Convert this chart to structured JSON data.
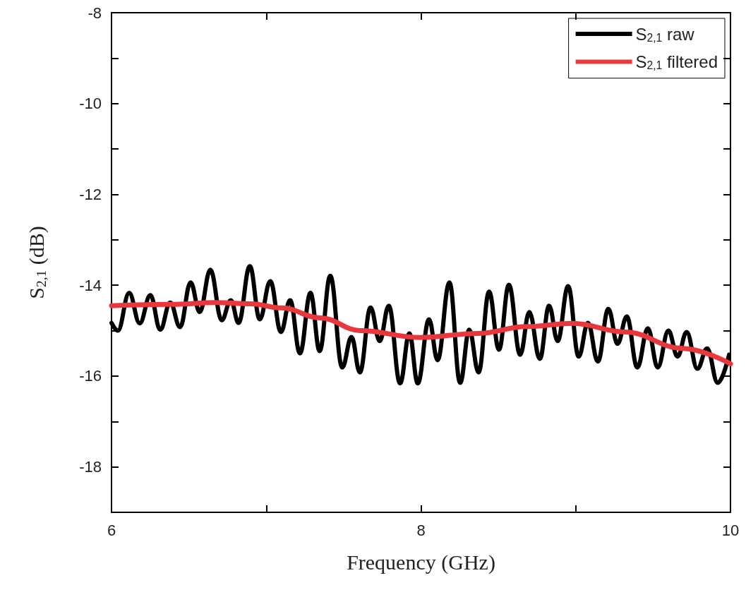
{
  "chart_data": {
    "type": "line",
    "xlabel": "Frequency (GHz)",
    "ylabel": "S$_{2,1}$ (dB)",
    "xlim": [
      6,
      10
    ],
    "ylim": [
      -19,
      -8
    ],
    "xticks": [
      6,
      {
        "value": 7,
        "label": null
      },
      8,
      {
        "value": 9,
        "label": null
      },
      10
    ],
    "yticks": [
      {
        "value": -19,
        "label": null
      },
      -18,
      {
        "value": -17,
        "label": null
      },
      -16,
      {
        "value": -15,
        "label": null
      },
      -14,
      {
        "value": -13,
        "label": null
      },
      -12,
      {
        "value": -11,
        "label": null
      },
      -10,
      {
        "value": -9,
        "label": null
      },
      -8
    ],
    "legend": "top right",
    "grid": false,
    "marker": "none",
    "line_style": "solid",
    "series": [
      {
        "name": "S$_{2,1}$ raw",
        "color": "#000000",
        "x": [
          6.0,
          6.041,
          6.114,
          6.182,
          6.251,
          6.315,
          6.379,
          6.443,
          6.511,
          6.57,
          6.639,
          6.712,
          6.771,
          6.821,
          6.894,
          6.958,
          7.026,
          7.095,
          7.154,
          7.218,
          7.286,
          7.345,
          7.414,
          7.491,
          7.551,
          7.605,
          7.674,
          7.733,
          7.792,
          7.865,
          7.925,
          7.979,
          8.052,
          8.107,
          8.184,
          8.253,
          8.312,
          8.372,
          8.44,
          8.504,
          8.568,
          8.641,
          8.7,
          8.768,
          8.828,
          8.883,
          8.951,
          9.019,
          9.079,
          9.143,
          9.211,
          9.27,
          9.33,
          9.398,
          9.466,
          9.53,
          9.599,
          9.658,
          9.717,
          9.786,
          9.849,
          9.918,
          9.991
        ],
        "values": [
          -14.83,
          -15.0,
          -14.17,
          -14.84,
          -14.22,
          -14.98,
          -14.38,
          -14.92,
          -13.94,
          -14.59,
          -13.66,
          -14.77,
          -14.33,
          -14.83,
          -13.58,
          -14.75,
          -13.91,
          -15.03,
          -14.33,
          -15.5,
          -14.17,
          -15.45,
          -13.79,
          -15.81,
          -15.14,
          -15.92,
          -14.49,
          -15.23,
          -14.45,
          -16.16,
          -15.06,
          -16.16,
          -14.75,
          -15.65,
          -13.94,
          -16.15,
          -14.98,
          -15.92,
          -14.14,
          -15.42,
          -13.99,
          -15.53,
          -14.59,
          -15.62,
          -14.45,
          -15.23,
          -14.02,
          -15.57,
          -14.83,
          -15.68,
          -14.52,
          -15.29,
          -14.69,
          -15.81,
          -14.95,
          -15.81,
          -15.0,
          -15.57,
          -15.03,
          -15.84,
          -15.39,
          -16.15,
          -15.53
        ]
      },
      {
        "name": "S$_{2,1}$ filtered",
        "color": "#e8383d",
        "x": [
          6.0,
          6.4,
          6.67,
          6.9,
          7.1,
          7.35,
          7.61,
          7.99,
          8.37,
          8.68,
          8.98,
          9.32,
          9.69,
          10.0
        ],
        "values": [
          -14.45,
          -14.42,
          -14.38,
          -14.41,
          -14.5,
          -14.72,
          -15.0,
          -15.15,
          -15.06,
          -14.91,
          -14.84,
          -15.03,
          -15.39,
          -15.73
        ]
      }
    ]
  }
}
